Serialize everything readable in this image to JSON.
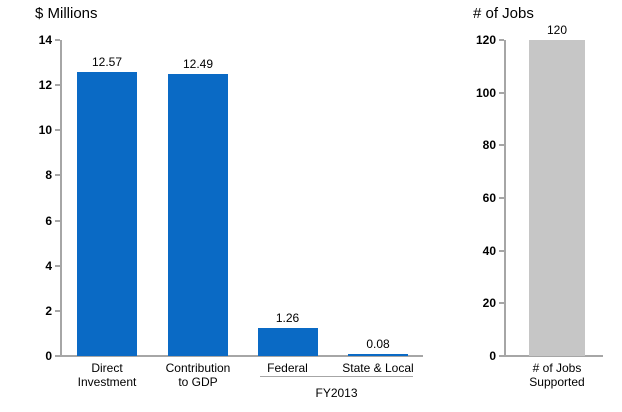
{
  "figure": {
    "background_color": "#FFFFFF",
    "axis_color": "#A6A6A6",
    "text_color": "#000000"
  },
  "chart_data": [
    {
      "type": "bar",
      "title": "$ Millions",
      "categories": [
        "Direct Investment",
        "Contribution to GDP",
        "Federal",
        "State & Local"
      ],
      "category_lines": [
        [
          "Direct",
          "Investment"
        ],
        [
          "Contribution",
          "to GDP"
        ],
        [
          "Federal"
        ],
        [
          "State & Local"
        ]
      ],
      "values": [
        12.57,
        12.49,
        1.26,
        0.08
      ],
      "value_labels": [
        "12.57",
        "12.49",
        "1.26",
        "0.08"
      ],
      "bar_color": "#0A6AC5",
      "ylim": [
        0,
        14
      ],
      "yticks": [
        0,
        2,
        4,
        6,
        8,
        10,
        12,
        14
      ],
      "xlabel": "FY2013",
      "xlabel_groups_categories": [
        "Federal",
        "State & Local"
      ],
      "grid": false,
      "legend_position": "none"
    },
    {
      "type": "bar",
      "title": "# of Jobs",
      "categories": [
        "# of Jobs Supported"
      ],
      "category_lines": [
        [
          "# of Jobs",
          "Supported"
        ]
      ],
      "values": [
        120
      ],
      "value_labels": [
        "120"
      ],
      "bar_color": "#C6C6C6",
      "ylim": [
        0,
        120
      ],
      "yticks": [
        0,
        20,
        40,
        60,
        80,
        100,
        120
      ],
      "grid": false,
      "legend_position": "none"
    }
  ]
}
